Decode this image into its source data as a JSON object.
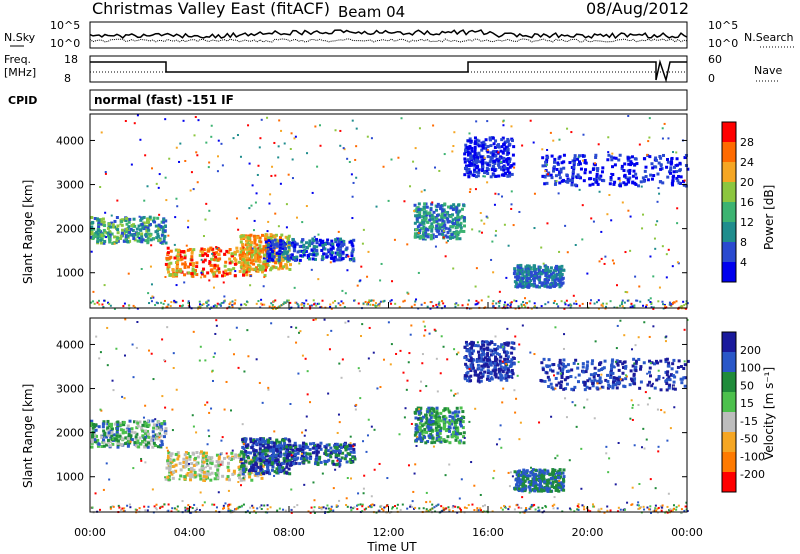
{
  "header": {
    "title": "Christmas Valley East (fitACF)",
    "beam": "Beam 04",
    "date": "08/Aug/2012"
  },
  "panels": {
    "nsky_label": "N.Sky",
    "nsky_ticks": [
      "10^5",
      "10^0"
    ],
    "nsky_right_ticks": [
      "10^5",
      "10^0"
    ],
    "nsearch_label": "N.Search",
    "freq_label_1": "Freq.",
    "freq_label_2": "[MHz]",
    "freq_ticks": [
      "18",
      "8"
    ],
    "nave_ticks": [
      "60",
      "0"
    ],
    "nave_label": "Nave",
    "cpid_label": "CPID",
    "cpid_value": "normal (fast) -151 IF"
  },
  "colors": {
    "power_scale": [
      "#0000ee",
      "#2a4ad0",
      "#1f8d8d",
      "#3cb371",
      "#8cc63f",
      "#f5a623",
      "#ff6a00",
      "#ff0000"
    ],
    "velocity_scale": [
      "#1a1a9c",
      "#2957c8",
      "#1f8b3a",
      "#4cc04c",
      "#bdbdbd",
      "#f5a623",
      "#ff7a00",
      "#ff0000"
    ]
  },
  "chart_data": [
    {
      "type": "heatmap",
      "name": "power",
      "ylabel": "Slant Range [km]",
      "yticks": [
        1000,
        2000,
        3000,
        4000
      ],
      "ylim": [
        200,
        4600
      ],
      "xlim": [
        0,
        24
      ],
      "xticks": [
        "00:00",
        "04:00",
        "08:00",
        "12:00",
        "16:00",
        "20:00",
        "00:00"
      ],
      "colorbar": {
        "label": "Power [dB]",
        "ticks": [
          "28",
          "24",
          "20",
          "16",
          "12",
          "8",
          "4"
        ],
        "range": [
          0,
          32
        ]
      }
    },
    {
      "type": "heatmap",
      "name": "velocity",
      "ylabel": "Slant Range [km]",
      "yticks": [
        1000,
        2000,
        3000,
        4000
      ],
      "ylim": [
        200,
        4600
      ],
      "xlim": [
        0,
        24
      ],
      "xticks": [
        "00:00",
        "04:00",
        "08:00",
        "12:00",
        "16:00",
        "20:00",
        "00:00"
      ],
      "xlabel": "Time UT",
      "colorbar": {
        "label": "Velocity [m s⁻¹]",
        "ticks": [
          "200",
          "100",
          "50",
          "15",
          "-15",
          "-50",
          "-100",
          "-200"
        ]
      }
    }
  ]
}
